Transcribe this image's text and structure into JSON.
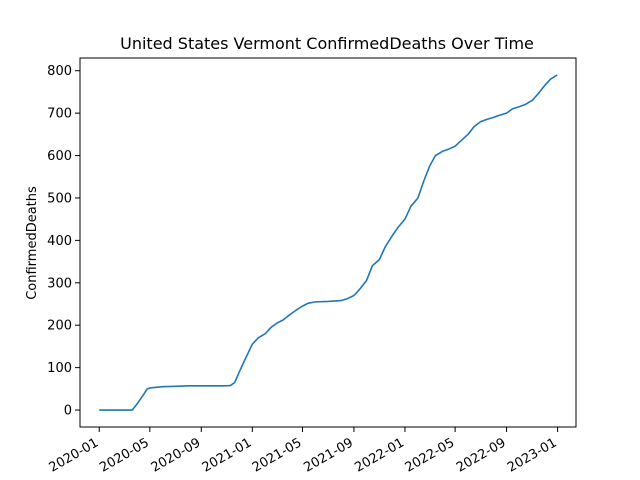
{
  "chart_data": {
    "type": "line",
    "title": "United States Vermont ConfirmedDeaths Over Time",
    "xlabel": "",
    "ylabel": "ConfirmedDeaths",
    "x_ticks": [
      "2020-01",
      "2020-05",
      "2020-09",
      "2021-01",
      "2021-05",
      "2021-09",
      "2022-01",
      "2022-05",
      "2022-09",
      "2023-01"
    ],
    "y_ticks": [
      0,
      100,
      200,
      300,
      400,
      500,
      600,
      700,
      800
    ],
    "xlim": [
      "2019-11-16",
      "2023-02-14"
    ],
    "ylim": [
      -40,
      830
    ],
    "grid": false,
    "line_color": "#1f77b4",
    "series": [
      {
        "x": [
          "2020-01-01",
          "2020-02-15",
          "2020-03-10",
          "2020-03-20",
          "2020-04-01",
          "2020-04-15",
          "2020-04-25",
          "2020-05-01",
          "2020-06-01",
          "2020-07-01",
          "2020-08-01",
          "2020-09-01",
          "2020-10-01",
          "2020-11-01",
          "2020-11-10",
          "2020-11-20",
          "2020-12-01",
          "2020-12-15",
          "2021-01-01",
          "2021-01-15",
          "2021-02-01",
          "2021-02-15",
          "2021-03-01",
          "2021-03-15",
          "2021-04-01",
          "2021-04-15",
          "2021-05-01",
          "2021-05-15",
          "2021-06-01",
          "2021-07-01",
          "2021-08-01",
          "2021-08-15",
          "2021-09-01",
          "2021-09-15",
          "2021-10-01",
          "2021-10-15",
          "2021-11-01",
          "2021-11-15",
          "2021-12-01",
          "2021-12-15",
          "2022-01-01",
          "2022-01-15",
          "2022-02-01",
          "2022-02-15",
          "2022-03-01",
          "2022-03-15",
          "2022-04-01",
          "2022-04-15",
          "2022-05-01",
          "2022-05-15",
          "2022-06-01",
          "2022-06-15",
          "2022-07-01",
          "2022-07-15",
          "2022-08-01",
          "2022-08-15",
          "2022-09-01",
          "2022-09-15",
          "2022-10-01",
          "2022-10-15",
          "2022-11-01",
          "2022-11-15",
          "2022-12-01",
          "2022-12-15",
          "2022-12-31"
        ],
        "y": [
          0,
          0,
          0,
          0,
          15,
          35,
          50,
          52,
          55,
          56,
          57,
          57,
          57,
          57,
          58,
          65,
          90,
          120,
          155,
          170,
          180,
          195,
          205,
          212,
          225,
          235,
          245,
          252,
          255,
          256,
          258,
          262,
          270,
          285,
          305,
          340,
          355,
          385,
          410,
          430,
          450,
          480,
          500,
          540,
          575,
          600,
          610,
          615,
          622,
          635,
          650,
          668,
          680,
          685,
          690,
          695,
          700,
          710,
          715,
          720,
          730,
          745,
          765,
          780,
          790
        ]
      }
    ]
  }
}
